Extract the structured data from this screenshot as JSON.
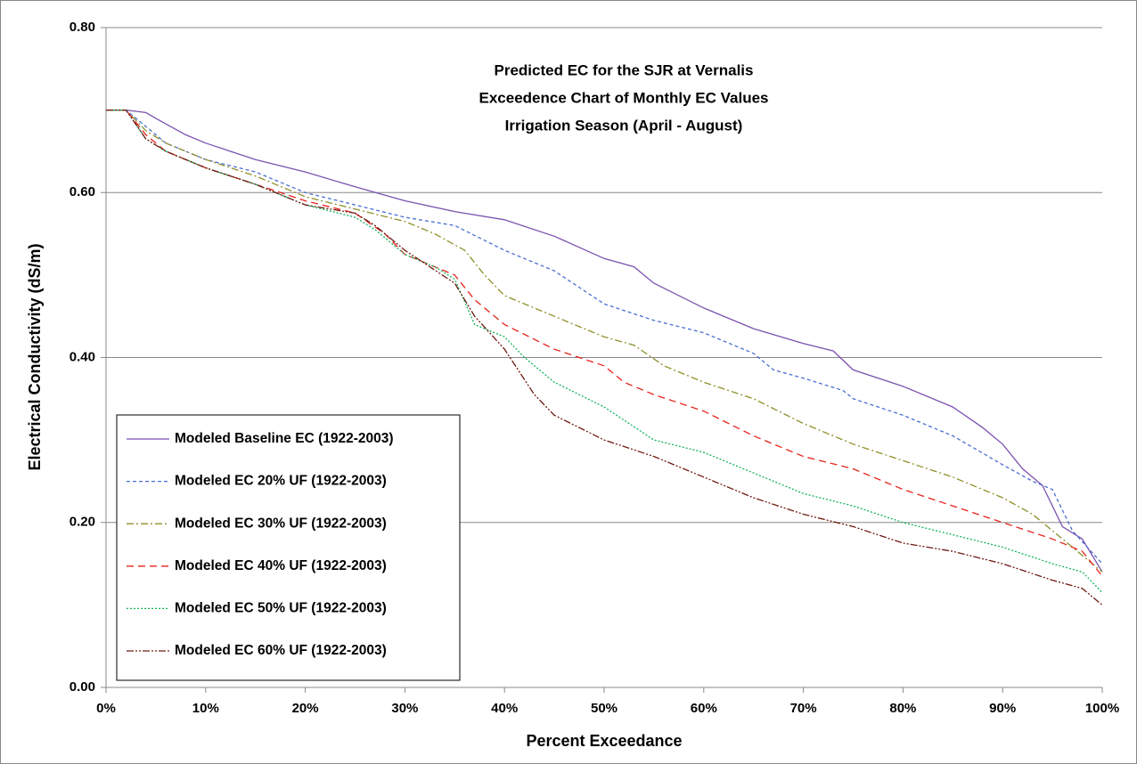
{
  "chart_data": {
    "type": "line",
    "title": [
      "Predicted EC for the SJR at Vernalis",
      "Exceedence Chart of Monthly EC Values",
      "Irrigation Season (April - August)"
    ],
    "x_label": "Percent Exceedance",
    "y_label": "Electrical Conductivity (dS/m)",
    "xlim": [
      0,
      100
    ],
    "ylim": [
      0,
      0.8
    ],
    "xticks": [
      {
        "value": 0,
        "label": "0%"
      },
      {
        "value": 10,
        "label": "10%"
      },
      {
        "value": 20,
        "label": "20%"
      },
      {
        "value": 30,
        "label": "30%"
      },
      {
        "value": 40,
        "label": "40%"
      },
      {
        "value": 50,
        "label": "50%"
      },
      {
        "value": 60,
        "label": "60%"
      },
      {
        "value": 70,
        "label": "70%"
      },
      {
        "value": 80,
        "label": "80%"
      },
      {
        "value": 90,
        "label": "90%"
      },
      {
        "value": 100,
        "label": "100%"
      }
    ],
    "yticks": [
      {
        "value": 0,
        "label": "0.00"
      },
      {
        "value": 0.2,
        "label": "0.20"
      },
      {
        "value": 0.4,
        "label": "0.40"
      },
      {
        "value": 0.6,
        "label": "0.60"
      },
      {
        "value": 0.8,
        "label": "0.80"
      }
    ],
    "grid": true,
    "legend": "lower left",
    "series": [
      {
        "name": "Modeled Baseline EC (1922-2003)",
        "color": "#7b52b0",
        "x": [
          0,
          2,
          4,
          5,
          8,
          10,
          15,
          20,
          25,
          30,
          35,
          40,
          45,
          50,
          53,
          55,
          60,
          65,
          70,
          73,
          75,
          80,
          85,
          88,
          90,
          92,
          94,
          96,
          98,
          100
        ],
        "values": [
          0.7,
          0.7,
          0.697,
          0.69,
          0.67,
          0.66,
          0.64,
          0.625,
          0.607,
          0.59,
          0.577,
          0.567,
          0.547,
          0.52,
          0.51,
          0.49,
          0.46,
          0.435,
          0.417,
          0.408,
          0.385,
          0.365,
          0.34,
          0.315,
          0.295,
          0.265,
          0.245,
          0.195,
          0.18,
          0.14
        ]
      },
      {
        "name": "Modeled EC 20% UF (1922-2003)",
        "color": "#4a6fd0",
        "x": [
          0,
          2,
          4,
          6,
          10,
          15,
          20,
          25,
          30,
          35,
          40,
          45,
          50,
          55,
          60,
          65,
          67,
          70,
          74,
          75,
          80,
          85,
          90,
          93,
          95,
          97,
          100
        ],
        "values": [
          0.7,
          0.7,
          0.68,
          0.66,
          0.64,
          0.625,
          0.6,
          0.585,
          0.57,
          0.56,
          0.53,
          0.505,
          0.465,
          0.445,
          0.43,
          0.405,
          0.385,
          0.375,
          0.36,
          0.35,
          0.33,
          0.305,
          0.27,
          0.25,
          0.24,
          0.19,
          0.15
        ]
      },
      {
        "name": "Modeled EC 30% UF (1922-2003)",
        "color": "#8f8f2a",
        "x": [
          0,
          2,
          4,
          6,
          10,
          15,
          20,
          25,
          30,
          33,
          36,
          38,
          40,
          45,
          50,
          53,
          56,
          60,
          65,
          70,
          75,
          80,
          85,
          90,
          93,
          96,
          100
        ],
        "values": [
          0.7,
          0.7,
          0.675,
          0.66,
          0.64,
          0.62,
          0.595,
          0.58,
          0.565,
          0.55,
          0.53,
          0.5,
          0.475,
          0.45,
          0.425,
          0.415,
          0.39,
          0.37,
          0.35,
          0.32,
          0.295,
          0.275,
          0.255,
          0.23,
          0.21,
          0.18,
          0.14
        ]
      },
      {
        "name": "Modeled EC 40% UF (1922-2003)",
        "color": "#e8221c",
        "x": [
          0,
          2,
          4,
          6,
          10,
          15,
          20,
          25,
          28,
          30,
          35,
          37,
          40,
          45,
          50,
          52,
          55,
          60,
          65,
          70,
          75,
          80,
          85,
          90,
          95,
          98,
          100
        ],
        "values": [
          0.7,
          0.7,
          0.67,
          0.65,
          0.63,
          0.61,
          0.59,
          0.575,
          0.55,
          0.525,
          0.5,
          0.47,
          0.44,
          0.41,
          0.39,
          0.37,
          0.355,
          0.335,
          0.305,
          0.28,
          0.265,
          0.24,
          0.22,
          0.2,
          0.18,
          0.165,
          0.135
        ]
      },
      {
        "name": "Modeled EC 50% UF (1922-2003)",
        "color": "#13b25a",
        "x": [
          0,
          2,
          4,
          6,
          10,
          15,
          20,
          25,
          27,
          30,
          33,
          35,
          37,
          40,
          42,
          45,
          50,
          55,
          60,
          65,
          70,
          75,
          80,
          85,
          90,
          95,
          98,
          100
        ],
        "values": [
          0.7,
          0.7,
          0.665,
          0.65,
          0.63,
          0.61,
          0.585,
          0.57,
          0.555,
          0.525,
          0.51,
          0.495,
          0.44,
          0.425,
          0.4,
          0.37,
          0.34,
          0.3,
          0.285,
          0.26,
          0.235,
          0.22,
          0.2,
          0.185,
          0.17,
          0.15,
          0.14,
          0.115
        ]
      },
      {
        "name": "Modeled EC 60% UF (1922-2003)",
        "color": "#6e1a12",
        "x": [
          0,
          2,
          4,
          6,
          10,
          15,
          20,
          25,
          27,
          30,
          35,
          37,
          40,
          43,
          45,
          50,
          55,
          60,
          65,
          70,
          75,
          80,
          85,
          90,
          95,
          98,
          100
        ],
        "values": [
          0.7,
          0.7,
          0.665,
          0.65,
          0.63,
          0.61,
          0.585,
          0.575,
          0.56,
          0.53,
          0.49,
          0.45,
          0.41,
          0.355,
          0.33,
          0.3,
          0.28,
          0.255,
          0.23,
          0.21,
          0.195,
          0.175,
          0.165,
          0.15,
          0.13,
          0.12,
          0.1
        ]
      }
    ]
  }
}
